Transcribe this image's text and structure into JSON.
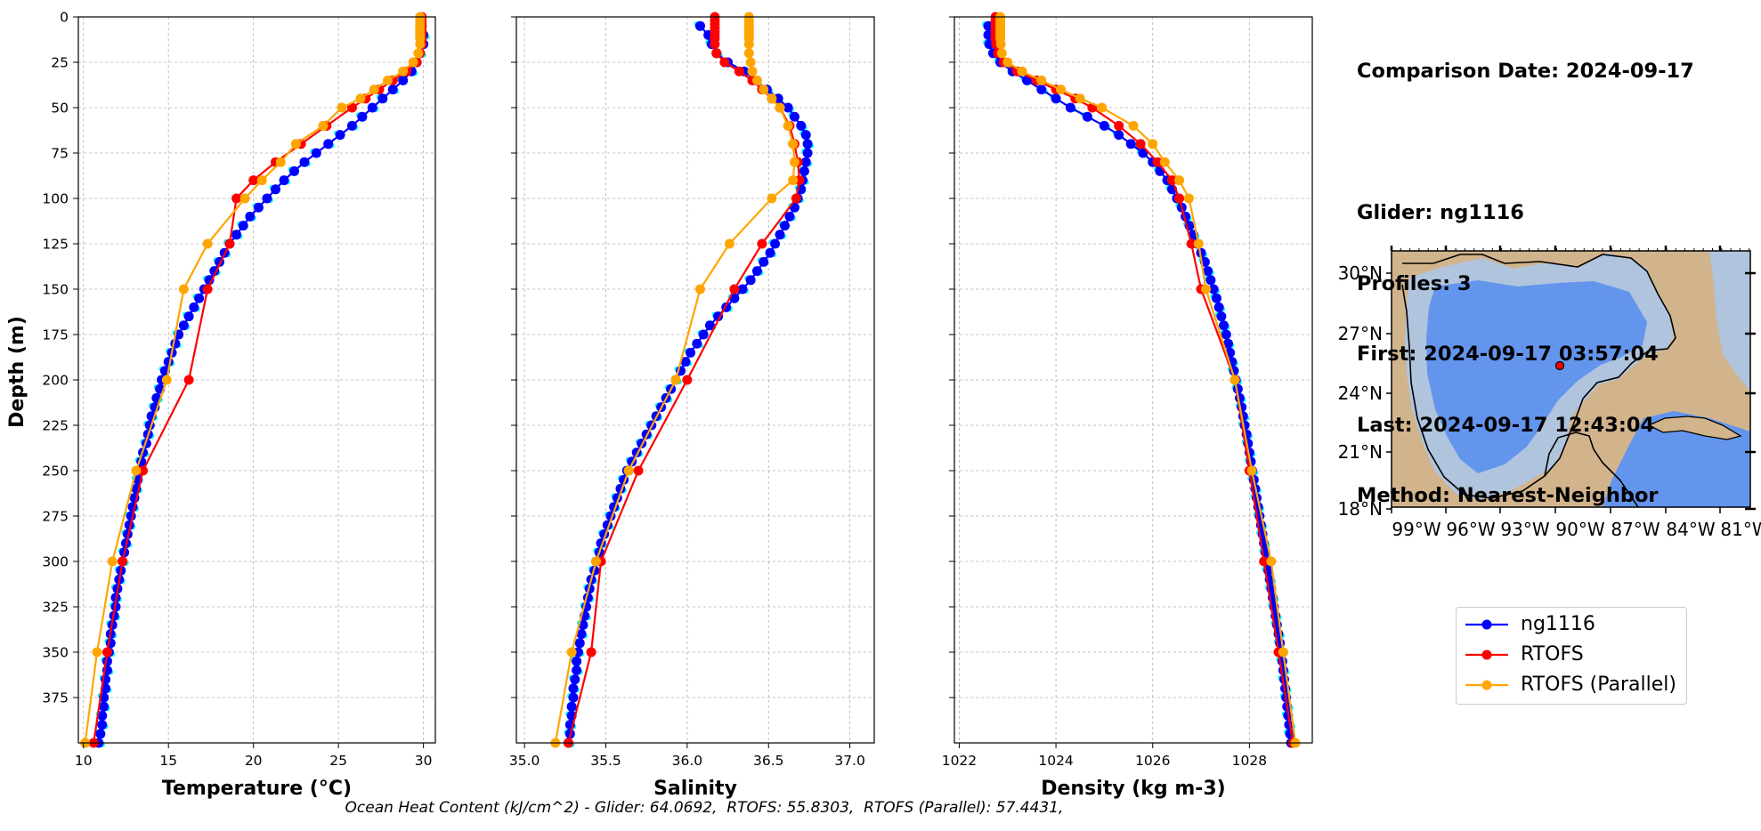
{
  "chart_data": [
    {
      "type": "line",
      "xlabel": "Temperature (°C)",
      "ylabel": "Depth (m)",
      "xlim": [
        9.7,
        30.7
      ],
      "ylim": [
        400,
        0
      ],
      "xticks": [
        10,
        15,
        20,
        25,
        30
      ],
      "yticks": [
        0,
        25,
        50,
        75,
        100,
        125,
        150,
        175,
        200,
        225,
        250,
        275,
        300,
        325,
        350,
        375
      ],
      "grid": true,
      "series": [
        {
          "name": "ng1116",
          "color": "#0000ff",
          "depth": [
            5,
            10,
            15,
            20,
            25,
            30,
            35,
            40,
            45,
            50,
            55,
            60,
            65,
            70,
            75,
            80,
            85,
            90,
            95,
            100,
            105,
            110,
            115,
            120,
            125,
            130,
            135,
            140,
            145,
            150,
            155,
            160,
            165,
            170,
            175,
            180,
            185,
            190,
            195,
            200,
            205,
            210,
            215,
            220,
            225,
            230,
            235,
            240,
            245,
            250,
            255,
            260,
            265,
            270,
            275,
            280,
            285,
            290,
            295,
            300,
            305,
            310,
            315,
            320,
            325,
            330,
            335,
            340,
            345,
            350,
            355,
            360,
            365,
            370,
            375,
            380,
            385,
            390,
            395,
            400
          ],
          "values": [
            29.9,
            30.0,
            30.0,
            29.8,
            29.6,
            29.3,
            28.8,
            28.2,
            27.6,
            27.0,
            26.4,
            25.8,
            25.1,
            24.4,
            23.7,
            23.0,
            22.4,
            21.8,
            21.3,
            20.8,
            20.3,
            19.8,
            19.4,
            19.0,
            18.6,
            18.3,
            18.0,
            17.7,
            17.4,
            17.1,
            16.8,
            16.5,
            16.2,
            15.9,
            15.6,
            15.4,
            15.2,
            15.0,
            14.8,
            14.6,
            14.5,
            14.3,
            14.2,
            14.0,
            13.9,
            13.8,
            13.7,
            13.5,
            13.4,
            13.3,
            13.2,
            13.1,
            13.0,
            12.9,
            12.8,
            12.7,
            12.6,
            12.5,
            12.4,
            12.3,
            12.2,
            12.1,
            12.0,
            11.9,
            11.9,
            11.8,
            11.7,
            11.6,
            11.6,
            11.5,
            11.4,
            11.4,
            11.3,
            11.3,
            11.2,
            11.2,
            11.1,
            11.1,
            11.0,
            10.9
          ]
        },
        {
          "name": "RTOFS",
          "color": "#ff0000",
          "depth": [
            0,
            2,
            4,
            6,
            8,
            10,
            12,
            15,
            20,
            25,
            30,
            35,
            40,
            45,
            50,
            60,
            70,
            80,
            90,
            100,
            125,
            150,
            200,
            250,
            300,
            350,
            400
          ],
          "values": [
            29.9,
            29.9,
            29.9,
            29.9,
            29.9,
            29.9,
            29.9,
            29.9,
            29.8,
            29.6,
            29.0,
            28.2,
            27.4,
            26.6,
            25.8,
            24.3,
            22.8,
            21.3,
            20.0,
            19.0,
            18.6,
            17.3,
            16.2,
            13.5,
            12.3,
            11.4,
            10.6
          ]
        },
        {
          "name": "RTOFS (Parallel)",
          "color": "#ffa500",
          "depth": [
            0,
            2,
            4,
            6,
            8,
            10,
            12,
            15,
            20,
            25,
            30,
            35,
            40,
            45,
            50,
            60,
            70,
            80,
            90,
            100,
            125,
            150,
            200,
            250,
            300,
            350,
            400
          ],
          "values": [
            29.8,
            29.8,
            29.8,
            29.8,
            29.8,
            29.8,
            29.8,
            29.8,
            29.7,
            29.4,
            28.8,
            27.9,
            27.1,
            26.3,
            25.2,
            24.1,
            22.5,
            21.6,
            20.5,
            19.5,
            17.3,
            15.9,
            14.9,
            13.1,
            11.7,
            10.8,
            10.1
          ]
        }
      ]
    },
    {
      "type": "line",
      "xlabel": "Salinity",
      "xlim": [
        34.95,
        37.15
      ],
      "ylim": [
        400,
        0
      ],
      "xticks": [
        35.0,
        35.5,
        36.0,
        36.5,
        37.0
      ],
      "grid": true,
      "series": [
        {
          "name": "ng1116",
          "color": "#0000ff",
          "depth": [
            5,
            10,
            15,
            20,
            25,
            30,
            35,
            40,
            45,
            50,
            55,
            60,
            65,
            70,
            75,
            80,
            85,
            90,
            95,
            100,
            105,
            110,
            115,
            120,
            125,
            130,
            135,
            140,
            145,
            150,
            155,
            160,
            165,
            170,
            175,
            180,
            185,
            190,
            195,
            200,
            205,
            210,
            215,
            220,
            225,
            230,
            235,
            240,
            245,
            250,
            255,
            260,
            265,
            270,
            275,
            280,
            285,
            290,
            295,
            300,
            305,
            310,
            315,
            320,
            325,
            330,
            335,
            340,
            345,
            350,
            355,
            360,
            365,
            370,
            375,
            380,
            385,
            390,
            395,
            400
          ],
          "values": [
            36.08,
            36.13,
            36.15,
            36.18,
            36.25,
            36.35,
            36.42,
            36.49,
            36.56,
            36.62,
            36.66,
            36.7,
            36.73,
            36.74,
            36.74,
            36.73,
            36.72,
            36.71,
            36.7,
            36.68,
            36.66,
            36.63,
            36.6,
            36.57,
            36.54,
            36.51,
            36.47,
            36.43,
            36.39,
            36.34,
            36.29,
            36.24,
            36.19,
            36.14,
            36.1,
            36.06,
            36.02,
            35.99,
            35.96,
            35.93,
            35.9,
            35.87,
            35.84,
            35.81,
            35.78,
            35.75,
            35.72,
            35.69,
            35.66,
            35.63,
            35.61,
            35.59,
            35.57,
            35.55,
            35.53,
            35.51,
            35.49,
            35.47,
            35.46,
            35.44,
            35.43,
            35.41,
            35.4,
            35.39,
            35.38,
            35.37,
            35.36,
            35.35,
            35.34,
            35.33,
            35.32,
            35.32,
            35.31,
            35.3,
            35.3,
            35.29,
            35.29,
            35.28,
            35.28,
            35.27
          ]
        },
        {
          "name": "RTOFS",
          "color": "#ff0000",
          "depth": [
            0,
            2,
            4,
            6,
            8,
            10,
            12,
            15,
            20,
            25,
            30,
            35,
            40,
            45,
            50,
            60,
            70,
            80,
            90,
            100,
            125,
            150,
            200,
            250,
            300,
            350,
            400
          ],
          "values": [
            36.17,
            36.17,
            36.17,
            36.17,
            36.17,
            36.17,
            36.17,
            36.17,
            36.18,
            36.23,
            36.32,
            36.4,
            36.46,
            36.52,
            36.57,
            36.63,
            36.66,
            36.68,
            36.69,
            36.67,
            36.46,
            36.29,
            36.0,
            35.7,
            35.47,
            35.41,
            35.27
          ]
        },
        {
          "name": "RTOFS (Parallel)",
          "color": "#ffa500",
          "depth": [
            0,
            2,
            4,
            6,
            8,
            10,
            12,
            15,
            20,
            25,
            30,
            35,
            40,
            45,
            50,
            60,
            70,
            80,
            90,
            100,
            125,
            150,
            200,
            250,
            300,
            350,
            400
          ],
          "values": [
            36.38,
            36.38,
            36.38,
            36.38,
            36.38,
            36.38,
            36.38,
            36.38,
            36.38,
            36.39,
            36.4,
            36.43,
            36.47,
            36.52,
            36.57,
            36.62,
            36.65,
            36.66,
            36.65,
            36.52,
            36.26,
            36.08,
            35.93,
            35.64,
            35.44,
            35.29,
            35.19
          ]
        }
      ]
    },
    {
      "type": "line",
      "xlabel": "Density (kg m-3)",
      "xlim": [
        1021.9,
        1029.3
      ],
      "ylim": [
        400,
        0
      ],
      "xticks": [
        1022,
        1024,
        1026,
        1028
      ],
      "grid": true,
      "series": [
        {
          "name": "ng1116",
          "color": "#0000ff",
          "depth": [
            5,
            10,
            15,
            20,
            25,
            30,
            35,
            40,
            45,
            50,
            55,
            60,
            65,
            70,
            75,
            80,
            85,
            90,
            95,
            100,
            105,
            110,
            115,
            120,
            125,
            130,
            135,
            140,
            145,
            150,
            155,
            160,
            165,
            170,
            175,
            180,
            185,
            190,
            195,
            200,
            205,
            210,
            215,
            220,
            225,
            230,
            235,
            240,
            245,
            250,
            255,
            260,
            265,
            270,
            275,
            280,
            285,
            290,
            295,
            300,
            305,
            310,
            315,
            320,
            325,
            330,
            335,
            340,
            345,
            350,
            355,
            360,
            365,
            370,
            375,
            380,
            385,
            390,
            395,
            400
          ],
          "values": [
            1022.6,
            1022.6,
            1022.62,
            1022.7,
            1022.85,
            1023.1,
            1023.4,
            1023.7,
            1024.0,
            1024.3,
            1024.65,
            1025.0,
            1025.3,
            1025.55,
            1025.8,
            1026.0,
            1026.15,
            1026.3,
            1026.4,
            1026.5,
            1026.6,
            1026.68,
            1026.76,
            1026.84,
            1026.92,
            1027.0,
            1027.08,
            1027.14,
            1027.2,
            1027.26,
            1027.32,
            1027.37,
            1027.42,
            1027.47,
            1027.52,
            1027.56,
            1027.6,
            1027.64,
            1027.68,
            1027.72,
            1027.76,
            1027.8,
            1027.84,
            1027.87,
            1027.9,
            1027.94,
            1027.97,
            1028.0,
            1028.03,
            1028.06,
            1028.09,
            1028.12,
            1028.15,
            1028.18,
            1028.21,
            1028.24,
            1028.27,
            1028.3,
            1028.33,
            1028.36,
            1028.39,
            1028.42,
            1028.45,
            1028.48,
            1028.51,
            1028.54,
            1028.57,
            1028.6,
            1028.63,
            1028.66,
            1028.68,
            1028.7,
            1028.72,
            1028.74,
            1028.76,
            1028.78,
            1028.8,
            1028.82,
            1028.84,
            1028.86
          ]
        },
        {
          "name": "RTOFS",
          "color": "#ff0000",
          "depth": [
            0,
            2,
            4,
            6,
            8,
            10,
            12,
            15,
            20,
            25,
            30,
            35,
            40,
            45,
            50,
            60,
            70,
            80,
            90,
            100,
            125,
            150,
            200,
            250,
            300,
            350,
            400
          ],
          "values": [
            1022.75,
            1022.75,
            1022.75,
            1022.75,
            1022.75,
            1022.75,
            1022.75,
            1022.76,
            1022.8,
            1022.92,
            1023.2,
            1023.6,
            1024.0,
            1024.4,
            1024.75,
            1025.3,
            1025.75,
            1026.1,
            1026.4,
            1026.55,
            1026.8,
            1027.0,
            1027.7,
            1028.0,
            1028.3,
            1028.6,
            1028.9
          ]
        },
        {
          "name": "RTOFS (Parallel)",
          "color": "#ffa500",
          "depth": [
            0,
            2,
            4,
            6,
            8,
            10,
            12,
            15,
            20,
            25,
            30,
            35,
            40,
            45,
            50,
            60,
            70,
            80,
            90,
            100,
            125,
            150,
            200,
            250,
            300,
            350,
            400
          ],
          "values": [
            1022.85,
            1022.85,
            1022.85,
            1022.85,
            1022.85,
            1022.85,
            1022.85,
            1022.86,
            1022.88,
            1023.0,
            1023.3,
            1023.7,
            1024.1,
            1024.5,
            1024.95,
            1025.6,
            1026.0,
            1026.25,
            1026.55,
            1026.75,
            1026.95,
            1027.1,
            1027.7,
            1028.05,
            1028.45,
            1028.7,
            1028.95
          ]
        }
      ]
    }
  ],
  "info": {
    "comparison_date": "Comparison Date: 2024-09-17",
    "glider": "Glider: ng1116",
    "profiles": "Profiles: 3",
    "first": "First: 2024-09-17 03:57:04",
    "last": "Last: 2024-09-17 12:43:04",
    "method": "Method: Nearest-Neighbor"
  },
  "map": {
    "lat_ticks": [
      "30°N",
      "27°N",
      "24°N",
      "21°N",
      "18°N"
    ],
    "lon_ticks": [
      "99°W",
      "96°W",
      "93°W",
      "90°W",
      "87°W",
      "84°W",
      "81°W"
    ],
    "marker_color": "#ff0000",
    "land_color": "#d2b48c",
    "shelf_color": "#b0c4de",
    "deep_color": "#6495ed"
  },
  "legend": {
    "entries": [
      {
        "label": "ng1116",
        "color": "#0000ff"
      },
      {
        "label": "RTOFS",
        "color": "#ff0000"
      },
      {
        "label": "RTOFS (Parallel)",
        "color": "#ffa500"
      }
    ]
  },
  "footer": "Ocean Heat Content (kJ/cm^2) - Glider: 64.0692,  RTOFS: 55.8303,  RTOFS (Parallel): 57.4431,"
}
